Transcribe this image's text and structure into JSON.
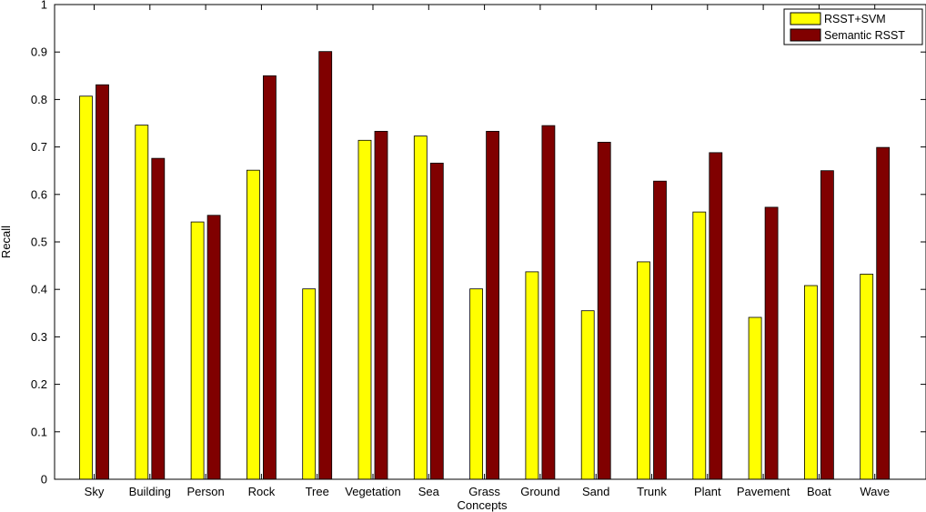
{
  "chart_data": {
    "type": "bar",
    "xlabel": "Concepts",
    "ylabel": "Recall",
    "ylim": [
      0,
      1
    ],
    "yticks": [
      0,
      0.1,
      0.2,
      0.3,
      0.4,
      0.5,
      0.6,
      0.7,
      0.8,
      0.9,
      1
    ],
    "ytick_labels": [
      "0",
      "0.1",
      "0.2",
      "0.3",
      "0.4",
      "0.5",
      "0.6",
      "0.7",
      "0.8",
      "0.9",
      "1"
    ],
    "grid": false,
    "legend_position": "top-right",
    "categories": [
      "Sky",
      "Building",
      "Person",
      "Rock",
      "Tree",
      "Vegetation",
      "Sea",
      "Grass",
      "Ground",
      "Sand",
      "Trunk",
      "Plant",
      "Pavement",
      "Boat",
      "Wave"
    ],
    "series": [
      {
        "name": "RSST+SVM",
        "color": "#ffff00",
        "values": [
          0.807,
          0.746,
          0.542,
          0.651,
          0.401,
          0.714,
          0.723,
          0.401,
          0.437,
          0.355,
          0.458,
          0.563,
          0.341,
          0.408,
          0.432
        ]
      },
      {
        "name": "Semantic RSST",
        "color": "#800000",
        "values": [
          0.831,
          0.676,
          0.556,
          0.85,
          0.901,
          0.733,
          0.666,
          0.733,
          0.745,
          0.71,
          0.628,
          0.688,
          0.573,
          0.65,
          0.699
        ]
      }
    ]
  }
}
